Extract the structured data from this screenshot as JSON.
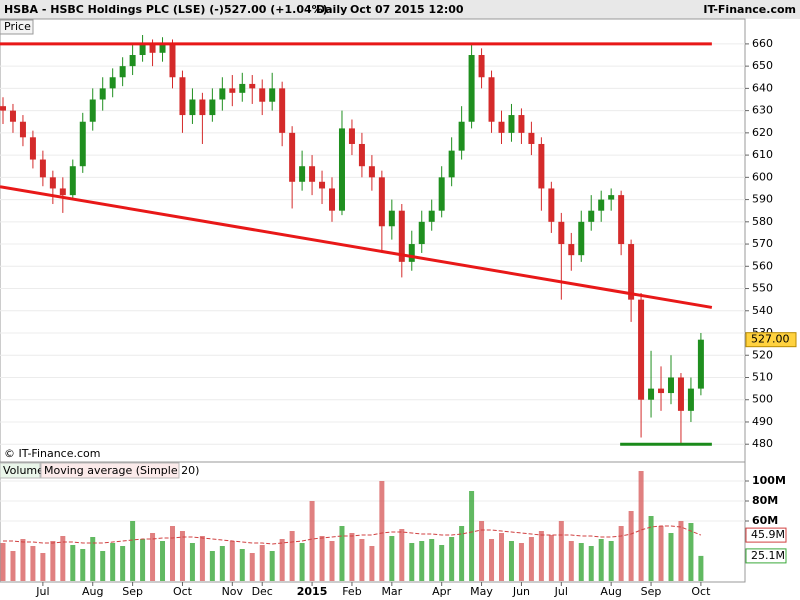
{
  "header": {
    "symbol": "HSBA - HSBC Holdings PLC (LSE) (-)",
    "quote": "527.00 (+1.04%)",
    "period": "Daily",
    "date": "Oct 07 2015 12:00",
    "site": "IT-Finance.com"
  },
  "chart_data": [
    {
      "type": "candlestick",
      "panel_label": "Price",
      "copyright": "© IT-Finance.com",
      "categories": [
        null,
        null,
        null,
        null,
        "Jul",
        null,
        null,
        null,
        null,
        "Aug",
        null,
        null,
        null,
        "Sep",
        null,
        null,
        null,
        null,
        "Oct",
        null,
        null,
        null,
        null,
        "Nov",
        null,
        null,
        "Dec",
        null,
        null,
        null,
        null,
        "2015",
        null,
        null,
        null,
        "Feb",
        null,
        null,
        null,
        "Mar",
        null,
        null,
        null,
        null,
        "Apr",
        null,
        null,
        null,
        "May",
        null,
        null,
        null,
        "Jun",
        null,
        null,
        null,
        "Jul",
        null,
        null,
        null,
        null,
        "Aug",
        null,
        null,
        null,
        "Sep",
        null,
        null,
        null,
        null,
        "Oct"
      ],
      "open": [
        632,
        630,
        625,
        618,
        608,
        600,
        595,
        592,
        605,
        625,
        635,
        640,
        645,
        650,
        655,
        660,
        656,
        660,
        645,
        628,
        635,
        628,
        635,
        640,
        638,
        642,
        640,
        634,
        640,
        620,
        598,
        605,
        598,
        595,
        585,
        622,
        615,
        605,
        600,
        578,
        585,
        562,
        570,
        580,
        585,
        600,
        612,
        625,
        655,
        645,
        625,
        620,
        628,
        620,
        615,
        595,
        580,
        570,
        565,
        580,
        585,
        590,
        592,
        570,
        545,
        500,
        505,
        503,
        510,
        495,
        505
      ],
      "high": [
        636,
        633,
        628,
        621,
        612,
        603,
        600,
        608,
        629,
        640,
        645,
        649,
        654,
        660,
        664,
        662,
        663,
        662,
        648,
        640,
        638,
        640,
        645,
        646,
        647,
        646,
        644,
        647,
        643,
        623,
        612,
        610,
        603,
        600,
        630,
        626,
        620,
        610,
        603,
        590,
        588,
        576,
        585,
        590,
        605,
        618,
        632,
        660,
        658,
        648,
        630,
        633,
        631,
        625,
        618,
        598,
        584,
        575,
        585,
        592,
        594,
        595,
        594,
        572,
        548,
        522,
        515,
        520,
        512,
        510,
        530
      ],
      "low": [
        624,
        620,
        614,
        604,
        596,
        588,
        584,
        590,
        602,
        621,
        630,
        636,
        641,
        646,
        652,
        650,
        652,
        640,
        620,
        624,
        615,
        625,
        630,
        632,
        634,
        633,
        628,
        630,
        614,
        586,
        594,
        592,
        588,
        580,
        583,
        610,
        600,
        594,
        566,
        572,
        555,
        558,
        566,
        576,
        582,
        596,
        608,
        622,
        640,
        620,
        615,
        616,
        615,
        610,
        585,
        575,
        545,
        558,
        562,
        576,
        580,
        585,
        565,
        535,
        483,
        492,
        495,
        498,
        480,
        490,
        502
      ],
      "close": [
        630,
        625,
        618,
        608,
        600,
        595,
        592,
        605,
        625,
        635,
        640,
        645,
        650,
        655,
        660,
        656,
        660,
        645,
        628,
        635,
        628,
        635,
        640,
        638,
        642,
        640,
        634,
        640,
        620,
        598,
        605,
        598,
        595,
        585,
        622,
        615,
        605,
        600,
        578,
        585,
        562,
        570,
        580,
        585,
        600,
        612,
        625,
        655,
        645,
        625,
        620,
        628,
        620,
        615,
        595,
        580,
        570,
        565,
        580,
        585,
        590,
        592,
        570,
        545,
        500,
        505,
        503,
        510,
        495,
        505,
        527
      ],
      "up_color": "#1f8f1f",
      "down_color": "#d42a2a",
      "ylim": [
        472,
        664
      ],
      "yticks": [
        480,
        490,
        500,
        510,
        520,
        530,
        540,
        550,
        560,
        570,
        580,
        590,
        600,
        610,
        620,
        630,
        640,
        650,
        660
      ],
      "grid": true,
      "last_price": {
        "value": 527,
        "label": "527.00"
      },
      "trend_lines": [
        {
          "color": "#e81818",
          "points": [
            [
              -0.3,
              660
            ],
            [
              71.1,
              660
            ]
          ]
        },
        {
          "color": "#e81818",
          "points": [
            [
              -0.3,
              595.8
            ],
            [
              71.1,
              541.5
            ]
          ]
        },
        {
          "color": "#1a8a1a",
          "points": [
            [
              61.9,
              480
            ],
            [
              71.1,
              480
            ]
          ]
        }
      ]
    },
    {
      "type": "volume",
      "series": [
        {
          "name": "Volume",
          "color": "#3aa83a",
          "down_color": "#d86060",
          "values": [
            38,
            30,
            42,
            35,
            28,
            40,
            45,
            36,
            32,
            44,
            30,
            38,
            35,
            60,
            42,
            48,
            40,
            55,
            50,
            38,
            45,
            30,
            35,
            40,
            32,
            28,
            36,
            30,
            42,
            50,
            38,
            80,
            45,
            40,
            55,
            48,
            42,
            35,
            100,
            45,
            52,
            38,
            40,
            42,
            36,
            44,
            55,
            90,
            60,
            42,
            48,
            40,
            38,
            44,
            50,
            46,
            60,
            40,
            38,
            35,
            42,
            40,
            55,
            70,
            110,
            65,
            55,
            48,
            60,
            58,
            25.1
          ],
          "last_label": {
            "value": 25.1,
            "label": "25.1M"
          }
        },
        {
          "name": "Moving average (Simple 20)",
          "color": "#d04040",
          "values": [
            40,
            40,
            39,
            39,
            38,
            38,
            39,
            39,
            38,
            38,
            38,
            39,
            40,
            41,
            42,
            42,
            43,
            43,
            44,
            44,
            43,
            42,
            41,
            40,
            39,
            38,
            38,
            37,
            38,
            39,
            40,
            42,
            43,
            44,
            45,
            45,
            46,
            46,
            48,
            49,
            49,
            48,
            47,
            47,
            46,
            46,
            47,
            49,
            51,
            51,
            50,
            49,
            48,
            47,
            46,
            46,
            46,
            46,
            45,
            45,
            44,
            44,
            45,
            47,
            51,
            54,
            55,
            55,
            54,
            50,
            45.9
          ],
          "last_label": {
            "value": 45.9,
            "label": "45.9M"
          }
        }
      ],
      "ylim": [
        0,
        118
      ],
      "yticks": [
        {
          "value": 60,
          "label": "60M"
        },
        {
          "value": 80,
          "label": "80M"
        },
        {
          "value": 100,
          "label": "100M"
        }
      ]
    }
  ]
}
